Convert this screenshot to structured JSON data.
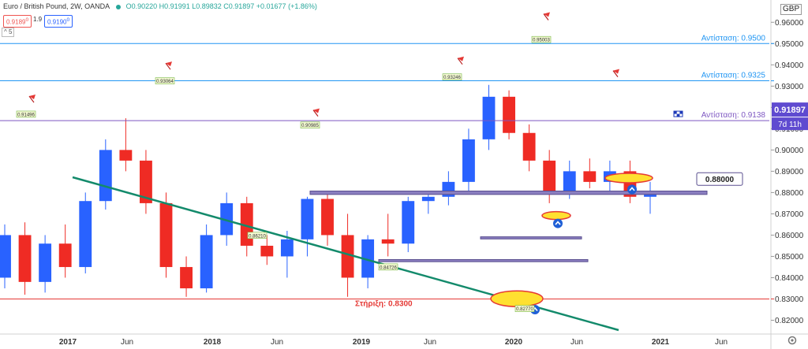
{
  "header": {
    "symbol": "Euro / British Pound",
    "interval": "2W",
    "source": "OANDA",
    "ohlc": "O0.90220 H0.91991 L0.89832 C0.91897 +0.01677 (+1.86%)",
    "sell_price": "0.9189",
    "sell_price_sup": "0",
    "buy_price": "0.9190",
    "buy_price_sup": "0",
    "spread": "1.9",
    "indicator_toggle": "5",
    "currency": "GBP"
  },
  "colors": {
    "up": "#2962ff",
    "down": "#ef2b24",
    "resistance_line": "#2196f3",
    "support_line": "#e53935",
    "current_line": "#7e57c2",
    "trendline": "#138a6b",
    "zone": "#8b7fc0",
    "highlight": "#ffe030"
  },
  "chart_data": {
    "type": "candlestick",
    "y_axis": {
      "min": 0.815,
      "max": 0.9675,
      "ticks": [
        "0.82000",
        "0.83000",
        "0.84000",
        "0.85000",
        "0.86000",
        "0.87000",
        "0.88000",
        "0.89000",
        "0.90000",
        "0.91000",
        "0.92000",
        "0.93000",
        "0.94000",
        "0.95000",
        "0.96000"
      ]
    },
    "x_axis": {
      "labels": [
        "2017",
        "Jun",
        "2018",
        "Jun",
        "2019",
        "Jun",
        "2020",
        "Jun",
        "2021",
        "Jun"
      ]
    },
    "candles_ohlc_sample": [
      [
        0.84,
        0.865,
        0.835,
        0.86
      ],
      [
        0.86,
        0.866,
        0.832,
        0.838
      ],
      [
        0.838,
        0.86,
        0.833,
        0.856
      ],
      [
        0.856,
        0.865,
        0.84,
        0.845
      ],
      [
        0.845,
        0.88,
        0.842,
        0.876
      ],
      [
        0.876,
        0.905,
        0.872,
        0.9
      ],
      [
        0.9,
        0.9149,
        0.89,
        0.895
      ],
      [
        0.895,
        0.9,
        0.87,
        0.875
      ],
      [
        0.875,
        0.88,
        0.84,
        0.845
      ],
      [
        0.845,
        0.85,
        0.831,
        0.835
      ],
      [
        0.835,
        0.865,
        0.833,
        0.86
      ],
      [
        0.86,
        0.88,
        0.855,
        0.875
      ],
      [
        0.875,
        0.878,
        0.85,
        0.855
      ],
      [
        0.855,
        0.86,
        0.846,
        0.85
      ],
      [
        0.85,
        0.862,
        0.84,
        0.858
      ],
      [
        0.858,
        0.878,
        0.85,
        0.877
      ],
      [
        0.877,
        0.88,
        0.855,
        0.86
      ],
      [
        0.86,
        0.87,
        0.831,
        0.84
      ],
      [
        0.84,
        0.86,
        0.835,
        0.858
      ],
      [
        0.858,
        0.87,
        0.85,
        0.856
      ],
      [
        0.856,
        0.878,
        0.852,
        0.876
      ],
      [
        0.876,
        0.88,
        0.87,
        0.878
      ],
      [
        0.878,
        0.89,
        0.874,
        0.885
      ],
      [
        0.885,
        0.91,
        0.88,
        0.905
      ],
      [
        0.905,
        0.9306,
        0.9,
        0.925
      ],
      [
        0.925,
        0.928,
        0.905,
        0.908
      ],
      [
        0.908,
        0.912,
        0.89,
        0.895
      ],
      [
        0.895,
        0.9,
        0.875,
        0.88
      ],
      [
        0.88,
        0.895,
        0.877,
        0.89
      ],
      [
        0.89,
        0.896,
        0.882,
        0.885
      ],
      [
        0.885,
        0.895,
        0.88,
        0.89
      ],
      [
        0.89,
        0.895,
        0.875,
        0.878
      ],
      [
        0.878,
        0.885,
        0.87,
        0.88
      ]
    ],
    "price_labels": [
      {
        "text": "0.91496",
        "value": 0.91496
      },
      {
        "text": "0.93064",
        "value": 0.93064
      },
      {
        "text": "0.90985",
        "value": 0.90985
      },
      {
        "text": "0.86210",
        "value": 0.8621
      },
      {
        "text": "0.93246",
        "value": 0.93246
      },
      {
        "text": "0.84726",
        "value": 0.84726
      },
      {
        "text": "0.95003",
        "value": 0.95003
      },
      {
        "text": "0.82770",
        "value": 0.8277
      }
    ],
    "levels": [
      {
        "label": "Αντίσταση: 0.9500",
        "value": 0.95
      },
      {
        "label": "Αντίσταση: 0.9325",
        "value": 0.9325
      },
      {
        "label": "Αντίσταση: 0.9138",
        "value": 0.9138
      },
      {
        "label": "Στήριξη: 0.8300",
        "value": 0.83
      }
    ],
    "zone_label": "0.88000",
    "current_price": "0.91897",
    "countdown": "7d 11h"
  }
}
